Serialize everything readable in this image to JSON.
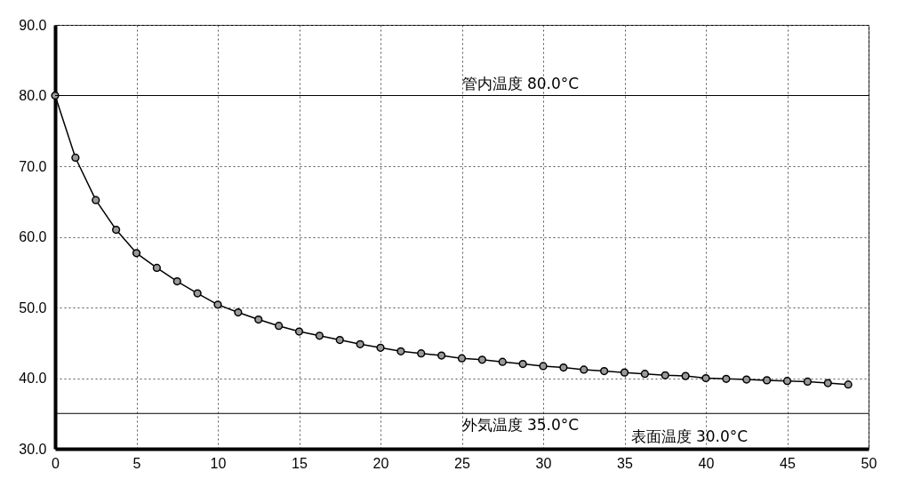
{
  "chart_data": {
    "type": "line",
    "x": [
      0,
      1.25,
      2.5,
      3.75,
      5,
      6.25,
      7.5,
      8.75,
      10,
      11.25,
      12.5,
      13.75,
      15,
      16.25,
      17.5,
      18.75,
      20,
      21.25,
      22.5,
      23.75,
      25,
      26.25,
      27.5,
      28.75,
      30,
      31.25,
      32.5,
      33.75,
      35,
      36.25,
      37.5,
      38.75,
      40,
      41.25,
      42.5,
      43.75,
      45,
      46.25,
      47.5,
      48.75
    ],
    "series": [
      {
        "color": "#000000",
        "values": [
          80.0,
          71.2,
          65.2,
          61.0,
          57.7,
          55.6,
          53.7,
          52.0,
          50.4,
          49.3,
          48.3,
          47.4,
          46.6,
          46.0,
          45.4,
          44.8,
          44.3,
          43.8,
          43.5,
          43.2,
          42.8,
          42.6,
          42.3,
          42.0,
          41.7,
          41.5,
          41.2,
          41.0,
          40.8,
          40.6,
          40.4,
          40.3,
          40.0,
          39.9,
          39.8,
          39.7,
          39.6,
          39.5,
          39.3,
          39.1
        ]
      }
    ],
    "xlim": [
      0,
      50
    ],
    "xticks": [
      0,
      5,
      10,
      15,
      20,
      25,
      30,
      35,
      40,
      45,
      50
    ],
    "ylim": [
      30,
      90
    ],
    "yticks": [
      {
        "value": 30,
        "label": "30.0"
      },
      {
        "value": 40,
        "label": "40.0"
      },
      {
        "value": 50,
        "label": "50.0"
      },
      {
        "value": 60,
        "label": "60.0"
      },
      {
        "value": 70,
        "label": "70.0"
      },
      {
        "value": 80,
        "label": "80.0"
      },
      {
        "value": 90,
        "label": "90.0"
      }
    ],
    "ref_lines": [
      {
        "axis": "y",
        "value": 80,
        "label": "管内温度 80.0°C"
      },
      {
        "axis": "y",
        "value": 35,
        "label": "外気温度 35.0°C"
      }
    ],
    "annotations": [
      "表面温度 30.0°C"
    ],
    "grid": true,
    "marker": "circle",
    "line_style": "solid"
  }
}
